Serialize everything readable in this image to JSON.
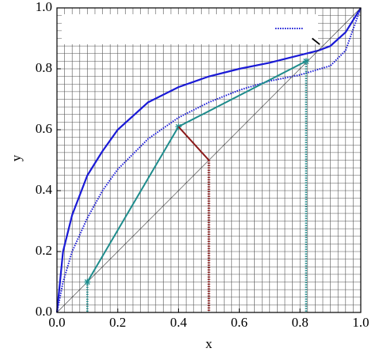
{
  "chart_data": {
    "type": "line",
    "x_label": "x",
    "y_label": "y",
    "xlim": [
      0,
      1
    ],
    "ylim": [
      0,
      1
    ],
    "xticks": [
      {
        "value": 0,
        "label": "0.0"
      },
      0.2,
      0.4,
      0.6,
      0.8,
      {
        "value": 1,
        "label": "1.0"
      }
    ],
    "yticks": [
      {
        "value": 0,
        "label": "0.0"
      },
      0.2,
      0.4,
      0.6,
      0.8,
      {
        "value": 1,
        "label": "1.0"
      }
    ],
    "grid": true,
    "minor_grid": 0.025,
    "legend": "top",
    "series": [
      {
        "color": "#1a1ad6",
        "style": "solid",
        "width": 2.2,
        "x": [
          0,
          0.02,
          0.05,
          0.1,
          0.15,
          0.2,
          0.3,
          0.4,
          0.5,
          0.6,
          0.7,
          0.8,
          0.86,
          0.9,
          0.95,
          1.0
        ],
        "values": [
          0,
          0.2,
          0.32,
          0.45,
          0.53,
          0.6,
          0.69,
          0.74,
          0.775,
          0.8,
          0.82,
          0.845,
          0.86,
          0.875,
          0.92,
          1.0
        ]
      },
      {
        "color": "#1a1ad6",
        "style": "dotted",
        "width": 2,
        "x": [
          0,
          0.02,
          0.05,
          0.1,
          0.15,
          0.2,
          0.3,
          0.4,
          0.5,
          0.6,
          0.7,
          0.8,
          0.9,
          0.95,
          1.0
        ],
        "values": [
          0,
          0.1,
          0.2,
          0.31,
          0.4,
          0.47,
          0.57,
          0.64,
          0.69,
          0.73,
          0.76,
          0.78,
          0.81,
          0.86,
          1.0
        ]
      },
      {
        "color": "#333333",
        "style": "solid",
        "width": 0.6,
        "x": [
          0,
          1
        ],
        "values": [
          0,
          1
        ]
      },
      {
        "color": "#1e8c8c",
        "style": "solid",
        "width": 2,
        "markers": true,
        "x": [
          0.1,
          0.4,
          0.82
        ],
        "values": [
          0.1,
          0.61,
          0.825
        ]
      },
      {
        "color": "#1e8c8c",
        "style": "dotted",
        "width": 2.5,
        "x": [
          0.1,
          0.1
        ],
        "values": [
          0.1,
          0
        ]
      },
      {
        "color": "#1e8c8c",
        "style": "dotted",
        "width": 2.5,
        "x": [
          0.82,
          0.82
        ],
        "values": [
          0.825,
          0
        ]
      },
      {
        "color": "#8b1a1a",
        "style": "solid",
        "width": 2,
        "x": [
          0.4,
          0.5
        ],
        "values": [
          0.61,
          0.5
        ]
      },
      {
        "color": "#8b1a1a",
        "style": "dotted",
        "width": 3,
        "x": [
          0.5,
          0.5
        ],
        "values": [
          0.5,
          0
        ]
      },
      {
        "color": "#000000",
        "style": "solid",
        "width": 1.8,
        "x": [
          0.84,
          0.865
        ],
        "values": [
          0.9,
          0.88
        ]
      }
    ]
  }
}
